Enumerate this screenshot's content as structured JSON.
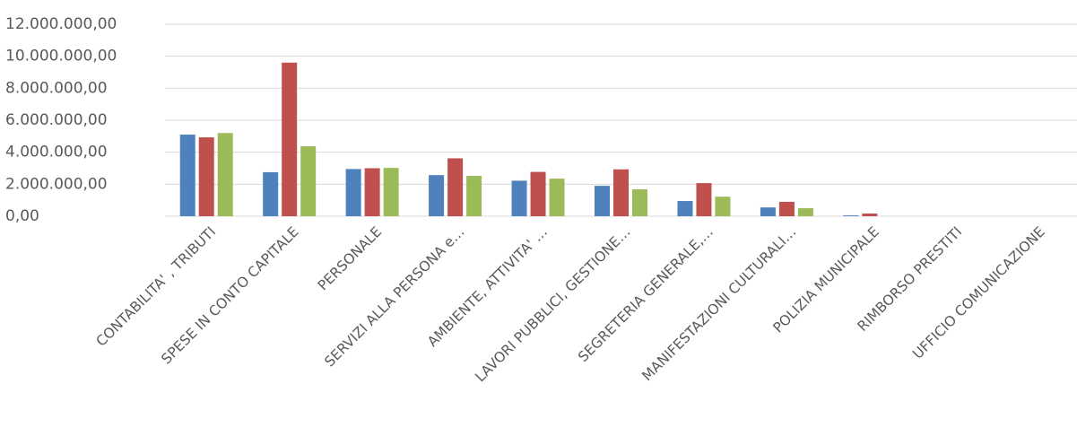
{
  "chart_data": {
    "type": "bar",
    "categories": [
      "CONTABILITA' , TRIBUTI",
      "SPESE IN CONTO CAPITALE",
      "PERSONALE",
      "SERVIZI ALLA PERSONA e…",
      "AMBIENTE, ATTIVITA' …",
      "LAVORI PUBBLICI, GESTIONE…",
      "SEGRETERIA GENERALE,…",
      "MANIFESTAZIONI CULTURALI…",
      "POLIZIA MUNICIPALE",
      "RIMBORSO PRESTITI",
      "UFFICIO COMUNICAZIONE"
    ],
    "series": [
      {
        "color": "#4f81bd",
        "values": [
          5100000,
          2750000,
          2950000,
          2570000,
          2220000,
          1900000,
          950000,
          550000,
          50000,
          0,
          0
        ]
      },
      {
        "color": "#c0504d",
        "values": [
          4930000,
          9600000,
          3000000,
          3620000,
          2770000,
          2930000,
          2070000,
          900000,
          170000,
          0,
          0
        ]
      },
      {
        "color": "#9bbb59",
        "values": [
          5200000,
          4370000,
          3020000,
          2520000,
          2350000,
          1680000,
          1220000,
          500000,
          0,
          0,
          0
        ]
      }
    ],
    "ylim": [
      0,
      12000000
    ],
    "yticks": [
      {
        "value": 0,
        "label": "0,00"
      },
      {
        "value": 2000000,
        "label": "2.000.000,00"
      },
      {
        "value": 4000000,
        "label": "4.000.000,00"
      },
      {
        "value": 6000000,
        "label": "6.000.000,00"
      },
      {
        "value": 8000000,
        "label": "8.000.000,00"
      },
      {
        "value": 10000000,
        "label": "10.000.000,00"
      },
      {
        "value": 12000000,
        "label": "12.000.000,00"
      }
    ],
    "grid": true
  }
}
